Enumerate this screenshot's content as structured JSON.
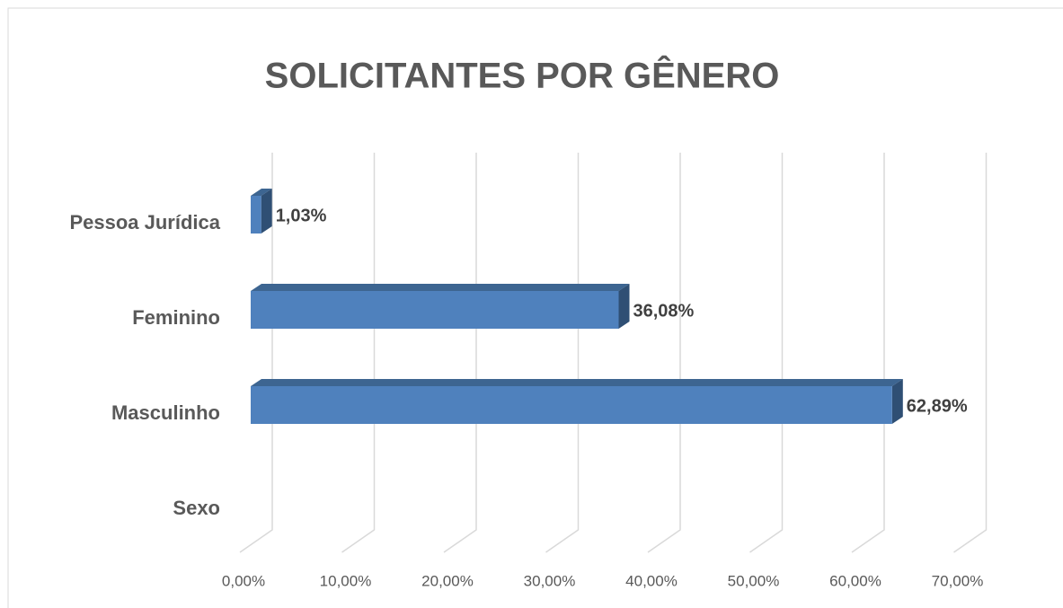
{
  "chart_data": {
    "type": "bar3d_horizontal",
    "title": "SOLICITANTES POR GÊNERO",
    "categories": [
      "Pessoa Jurídica",
      "Feminino",
      "Masculinho",
      "Sexo"
    ],
    "values": [
      1.03,
      36.08,
      62.89,
      null
    ],
    "value_labels": [
      "1,03%",
      "36,08%",
      "62,89%",
      null
    ],
    "color": "#4f81bd",
    "xlim": [
      0,
      70
    ],
    "xticks": [
      {
        "value": 0,
        "label": "0,00%"
      },
      {
        "value": 10,
        "label": "10,00%"
      },
      {
        "value": 20,
        "label": "20,00%"
      },
      {
        "value": 30,
        "label": "30,00%"
      },
      {
        "value": 40,
        "label": "40,00%"
      },
      {
        "value": 50,
        "label": "50,00%"
      },
      {
        "value": 60,
        "label": "60,00%"
      },
      {
        "value": 70,
        "label": "70,00%"
      }
    ],
    "grid": true
  }
}
